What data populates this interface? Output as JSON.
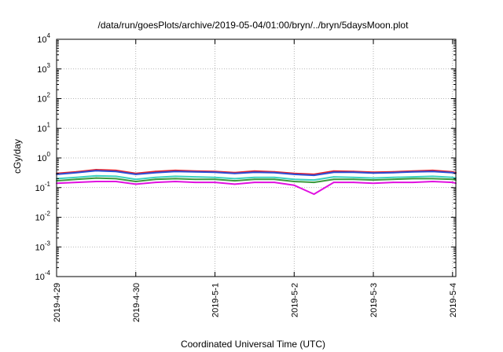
{
  "chart_data": {
    "type": "line",
    "title": "/data/run/goesPlots/archive/2019-05-04/01:00/bryn/../bryn/5daysMoon.plot",
    "xlabel": "Coordinated Universal Time (UTC)",
    "ylabel": "cGy/day",
    "yscale": "log",
    "ylim": [
      0.0001,
      10000
    ],
    "xlim": [
      "2019-04-29 00:00",
      "2019-05-04 01:00"
    ],
    "grid": true,
    "x_ticks": [
      {
        "label": "2019-4-29",
        "value": "2019-04-29"
      },
      {
        "label": "2019-4-30",
        "value": "2019-04-30"
      },
      {
        "label": "2019-5-1",
        "value": "2019-05-01"
      },
      {
        "label": "2019-5-2",
        "value": "2019-05-02"
      },
      {
        "label": "2019-5-3",
        "value": "2019-05-03"
      },
      {
        "label": "2019-5-4",
        "value": "2019-05-04"
      }
    ],
    "y_ticks": [
      {
        "base": "10",
        "exp": "-4",
        "value": 0.0001
      },
      {
        "base": "10",
        "exp": "-3",
        "value": 0.001
      },
      {
        "base": "10",
        "exp": "-2",
        "value": 0.01
      },
      {
        "base": "10",
        "exp": "-1",
        "value": 0.1
      },
      {
        "base": "10",
        "exp": "0",
        "value": 1
      },
      {
        "base": "10",
        "exp": "1",
        "value": 10
      },
      {
        "base": "10",
        "exp": "2",
        "value": 100
      },
      {
        "base": "10",
        "exp": "3",
        "value": 1000
      },
      {
        "base": "10",
        "exp": "4",
        "value": 10000
      }
    ],
    "x": [
      "2019-04-29 00:00",
      "2019-04-29 06:00",
      "2019-04-29 12:00",
      "2019-04-29 18:00",
      "2019-04-30 00:00",
      "2019-04-30 06:00",
      "2019-04-30 12:00",
      "2019-04-30 18:00",
      "2019-05-01 00:00",
      "2019-05-01 06:00",
      "2019-05-01 12:00",
      "2019-05-01 18:00",
      "2019-05-02 00:00",
      "2019-05-02 06:00",
      "2019-05-02 12:00",
      "2019-05-02 18:00",
      "2019-05-03 00:00",
      "2019-05-03 06:00",
      "2019-05-03 12:00",
      "2019-05-03 18:00",
      "2019-05-04 00:00",
      "2019-05-04 01:00"
    ],
    "series": [
      {
        "color": "#e8202a",
        "values": [
          0.3,
          0.34,
          0.4,
          0.38,
          0.3,
          0.35,
          0.38,
          0.36,
          0.35,
          0.32,
          0.36,
          0.34,
          0.3,
          0.28,
          0.36,
          0.35,
          0.33,
          0.34,
          0.36,
          0.38,
          0.34,
          0.32
        ]
      },
      {
        "color": "#2b4fd6",
        "values": [
          0.28,
          0.32,
          0.37,
          0.35,
          0.28,
          0.32,
          0.35,
          0.34,
          0.33,
          0.3,
          0.33,
          0.32,
          0.28,
          0.26,
          0.33,
          0.33,
          0.31,
          0.32,
          0.34,
          0.35,
          0.32,
          0.3
        ]
      },
      {
        "color": "#3cd0c0",
        "values": [
          0.2,
          0.22,
          0.25,
          0.24,
          0.19,
          0.22,
          0.24,
          0.23,
          0.22,
          0.2,
          0.22,
          0.22,
          0.19,
          0.18,
          0.23,
          0.22,
          0.21,
          0.22,
          0.23,
          0.24,
          0.22,
          0.21
        ]
      },
      {
        "color": "#3c9a3c",
        "values": [
          0.17,
          0.19,
          0.21,
          0.2,
          0.16,
          0.19,
          0.2,
          0.19,
          0.19,
          0.17,
          0.19,
          0.19,
          0.16,
          0.15,
          0.19,
          0.19,
          0.18,
          0.19,
          0.2,
          0.2,
          0.19,
          0.18
        ]
      },
      {
        "color": "#e010e0",
        "values": [
          0.14,
          0.15,
          0.16,
          0.16,
          0.13,
          0.15,
          0.16,
          0.15,
          0.15,
          0.13,
          0.15,
          0.15,
          0.12,
          0.06,
          0.15,
          0.15,
          0.14,
          0.15,
          0.15,
          0.16,
          0.15,
          0.14
        ]
      }
    ]
  }
}
